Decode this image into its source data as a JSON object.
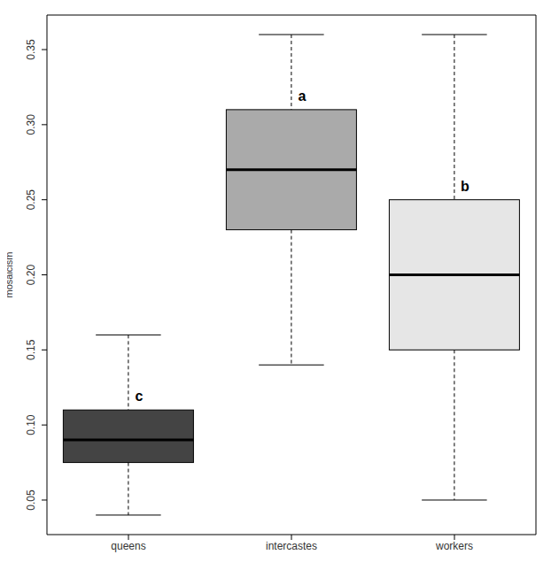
{
  "chart_data": {
    "type": "box",
    "y_label": "mosaicism",
    "categories": [
      "queens",
      "intercastes",
      "workers"
    ],
    "min": [
      0.04,
      0.14,
      0.05
    ],
    "q1": [
      0.075,
      0.23,
      0.15
    ],
    "median": [
      0.09,
      0.27,
      0.2
    ],
    "q3": [
      0.11,
      0.31,
      0.25
    ],
    "max": [
      0.16,
      0.36,
      0.36
    ],
    "annotations": [
      "c",
      "a",
      "b"
    ],
    "colors": [
      "#444444",
      "#aaaaaa",
      "#e6e6e6"
    ],
    "ylim": [
      0.027,
      0.373
    ],
    "yticks": [
      0.05,
      {
        "value": 0.1,
        "label": "0.10"
      },
      0.15,
      {
        "value": 0.2,
        "label": "0.20"
      },
      0.25,
      {
        "value": 0.3,
        "label": "0.30"
      },
      0.35
    ]
  }
}
